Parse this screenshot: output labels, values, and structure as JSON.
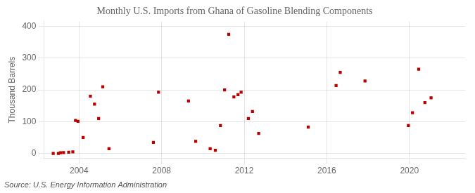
{
  "chart_data": {
    "type": "scatter",
    "title": "Monthly U.S. Imports from Ghana of Gasoline Blending Components",
    "ylabel": "Thousand Barrels",
    "annotations": [
      "Source: U.S. Energy Information Administration"
    ],
    "color": "#bb0000",
    "marker": "square",
    "grid": true,
    "xlim": [
      2002.3,
      2022.7
    ],
    "ylim": [
      -15,
      415
    ],
    "xticks": [
      2004,
      2008,
      2012,
      2016,
      2020
    ],
    "yticks": [
      0,
      100,
      200,
      300,
      400
    ],
    "x": [
      2002.75,
      2003.0,
      2003.1,
      2003.25,
      2003.5,
      2003.7,
      2003.83,
      2003.95,
      2004.2,
      2004.55,
      2004.75,
      2004.95,
      2005.15,
      2005.45,
      2007.6,
      2007.85,
      2009.3,
      2009.65,
      2010.35,
      2010.6,
      2010.85,
      2011.05,
      2011.25,
      2011.5,
      2011.7,
      2011.85,
      2012.2,
      2012.4,
      2012.7,
      2015.1,
      2016.45,
      2016.65,
      2017.85,
      2019.95,
      2020.15,
      2020.45,
      2020.75,
      2021.05
    ],
    "values": [
      0,
      0,
      2,
      3,
      4,
      5,
      104,
      101,
      50,
      180,
      155,
      110,
      210,
      15,
      35,
      193,
      165,
      38,
      15,
      10,
      88,
      200,
      375,
      178,
      185,
      193,
      110,
      132,
      63,
      83,
      214,
      255,
      228,
      88,
      128,
      265,
      160,
      175
    ]
  }
}
